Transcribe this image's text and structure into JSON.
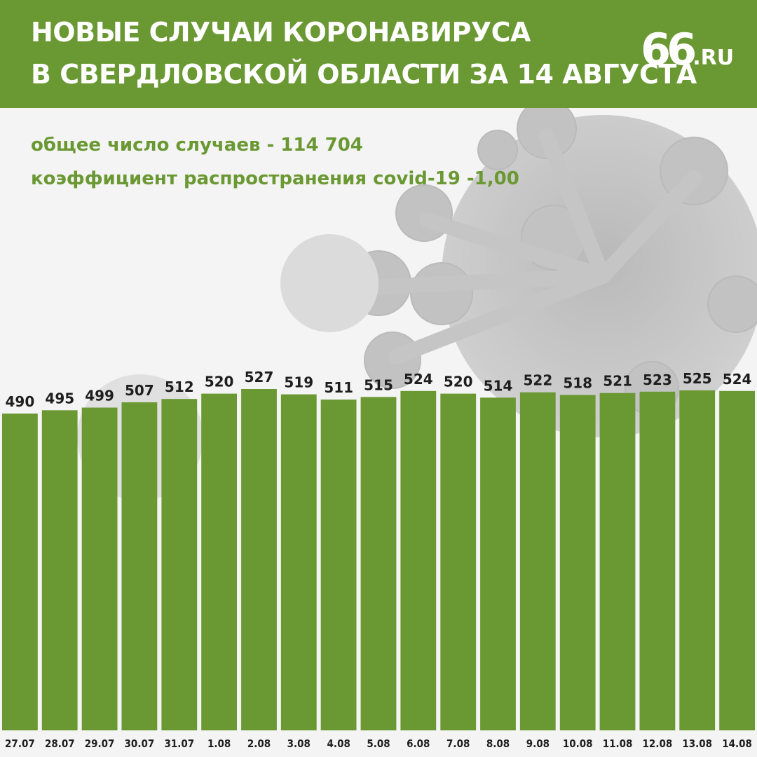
{
  "header": {
    "title_line1": "НОВЫЕ СЛУЧАИ КОРОНАВИРУСА",
    "title_line2": "В СВЕРДЛОВСКОЙ ОБЛАСТИ ЗА 14 АВГУСТА",
    "logo_number": "66",
    "logo_suffix": ".RU"
  },
  "stats": {
    "total_cases": "общее число случаев - 114 704",
    "spread_coefficient": "коэффициент распространения covid-19 -1,00"
  },
  "colors": {
    "accent": "#6a9832",
    "bar": "#6a9832",
    "text_dark": "#1e1e1e"
  },
  "chart_data": {
    "type": "bar",
    "categories": [
      "27.07",
      "28.07",
      "29.07",
      "30.07",
      "31.07",
      "1.08",
      "2.08",
      "3.08",
      "4.08",
      "5.08",
      "6.08",
      "7.08",
      "8.08",
      "9.08",
      "10.08",
      "11.08",
      "12.08",
      "13.08",
      "14.08"
    ],
    "values": [
      490,
      495,
      499,
      507,
      512,
      520,
      527,
      519,
      511,
      515,
      524,
      520,
      514,
      522,
      518,
      521,
      523,
      525,
      524
    ],
    "title": "НОВЫЕ СЛУЧАИ КОРОНАВИРУСА В СВЕРДЛОВСКОЙ ОБЛАСТИ ЗА 14 АВГУСТА",
    "xlabel": "",
    "ylabel": "",
    "grid": false,
    "data_labels": true
  }
}
